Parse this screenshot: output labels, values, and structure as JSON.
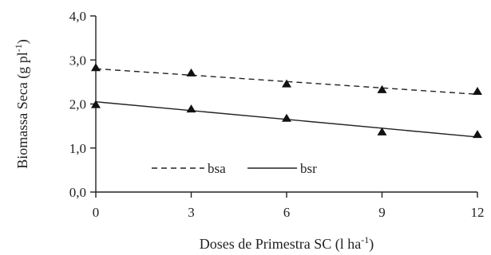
{
  "chart_data": {
    "type": "scatter",
    "title": "",
    "xlabel": "Doses de Primestra SC (l ha",
    "xlabel_sup": "-1",
    "xlabel_suffix": ")",
    "ylabel": "Biomassa Seca (g pl",
    "ylabel_sup": "-1",
    "ylabel_suffix": ")",
    "xlim": [
      0,
      12
    ],
    "ylim": [
      0,
      4
    ],
    "x_ticks": [
      0,
      3,
      6,
      9,
      12
    ],
    "x_tick_labels": [
      "0",
      "3",
      "6",
      "9",
      "12"
    ],
    "y_ticks": [
      0,
      1,
      2,
      3,
      4
    ],
    "y_tick_labels": [
      "0,0",
      "1,0",
      "2,0",
      "3,0",
      "4,0"
    ],
    "grid": false,
    "legend_position": "bottom-left",
    "series": [
      {
        "name": "bsa",
        "line_style": "dashed",
        "marker": "triangle",
        "x": [
          0,
          3,
          6,
          9,
          12
        ],
        "y": [
          2.82,
          2.7,
          2.45,
          2.32,
          2.28
        ],
        "fit": [
          2.8,
          2.22
        ]
      },
      {
        "name": "bsr",
        "line_style": "solid",
        "marker": "triangle",
        "x": [
          0,
          3,
          6,
          9,
          12
        ],
        "y": [
          1.98,
          1.88,
          1.67,
          1.36,
          1.3
        ],
        "fit": [
          2.05,
          1.25
        ]
      }
    ]
  }
}
